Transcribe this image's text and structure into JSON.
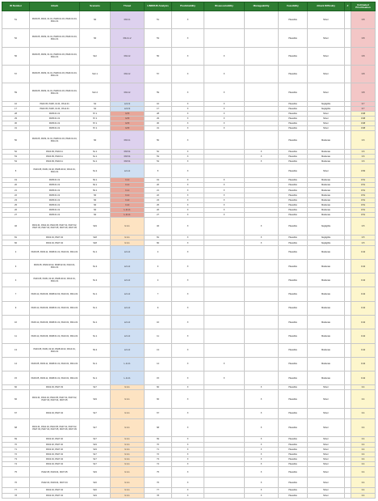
{
  "columns": [
    "ID Number",
    "Attack",
    "Scenario",
    "Threat",
    "LINDDUN Analysis",
    "Predictability",
    "Disassociability",
    "Manageability",
    "Feasibility",
    "Attack Difficulty",
    "#",
    "Estimated Prioritisation"
  ],
  "colors": {
    "header": "#2e7d32",
    "threat_D": "#ddd1ee",
    "threat_L": "#cfdff3",
    "threat_Ired": "#e8a79a",
    "threat_U": "#fde3c2",
    "prio_red": "#f3c6c6",
    "prio_yellow": "#fdf6cc",
    "prio_white": "#ffffff"
  },
  "rows": [
    {
      "id": "51",
      "attack": "PA03.05, PA04, 01.01, PA08.01.03, PA09.01.04, PA11.01",
      "scenario": "S6",
      "threat": "D3.3.1",
      "threat_color": "D",
      "linddun": "51",
      "pred": "X",
      "dis": "",
      "man": "",
      "feas": "Plausible",
      "diff": "Minor",
      "num": "",
      "prio": "0.8",
      "prio_color": "red",
      "h": "h5"
    },
    {
      "id": "52",
      "attack": "PA03.05, PA09, 01.01, PA08.01.03, PA09.01.04, PA11.01",
      "scenario": "S6",
      "threat": "D3.4.1.2",
      "threat_color": "D",
      "linddun": "53",
      "pred": "X",
      "dis": "",
      "man": "",
      "feas": "Plausible",
      "diff": "Minor",
      "num": "",
      "prio": "0.8",
      "prio_color": "red",
      "h": "h5"
    },
    {
      "id": "56",
      "attack": "PA03.05, PA09, 01.01, PA08.01.03, PA09.01.04, PA11.01",
      "scenario": "S12",
      "threat": "D3.4.2",
      "threat_color": "D",
      "linddun": "56",
      "pred": "X",
      "dis": "X",
      "man": "",
      "feas": "Plausible",
      "diff": "Minor",
      "num": "",
      "prio": "0.8",
      "prio_color": "red",
      "h": "h5"
    },
    {
      "id": "57",
      "attack": "PA03.05, PA09, 01.01, PA08.01.03, PA09.01.04, PA11.01",
      "scenario": "S12.1",
      "threat": "D3.4.2",
      "threat_color": "D",
      "linddun": "57",
      "pred": "X",
      "dis": "X",
      "man": "",
      "feas": "Plausible",
      "diff": "Minor",
      "num": "",
      "prio": "0.8",
      "prio_color": "red",
      "h": "h5"
    },
    {
      "id": "59",
      "attack": "PA03.05, PA09, 01.01, PA08.01.03, PA09.01.04, PA11.01",
      "scenario": "S12.2",
      "threat": "D3.4.2",
      "threat_color": "D",
      "linddun": "59",
      "pred": "X",
      "dis": "X",
      "man": "",
      "feas": "Plausible",
      "diff": "Minor",
      "num": "",
      "prio": "0.8",
      "prio_color": "red",
      "h": "h5"
    },
    {
      "id": "16",
      "attack": "PA03.05, PA08, 01.01, PA11.01",
      "scenario": "S4",
      "threat": "L2.2.3",
      "threat_color": "L",
      "linddun": "16",
      "pred": "X",
      "dis": "X",
      "man": "",
      "feas": "Plausible",
      "diff": "Negligible",
      "num": "",
      "prio": "0.7",
      "prio_color": "red",
      "h": "h1"
    },
    {
      "id": "17",
      "attack": "PA03.05, PA08, 01.01, PA11.01",
      "scenario": "S4",
      "threat": "L2.2.3",
      "threat_color": "L",
      "linddun": "17",
      "pred": "X",
      "dis": "X",
      "man": "",
      "feas": "Plausible",
      "diff": "Negligible",
      "num": "",
      "prio": "0.7",
      "prio_color": "red",
      "h": "h1"
    },
    {
      "id": "28",
      "attack": "PA05.01.01",
      "scenario": "S7.1",
      "threat": "I.2.5",
      "threat_color": "Ired",
      "linddun": "28",
      "pred": "X",
      "dis": "X",
      "man": "",
      "feas": "Plausible",
      "diff": "Minor",
      "num": "",
      "prio": "0.68",
      "prio_color": "yellow",
      "h": "h1"
    },
    {
      "id": "29",
      "attack": "PA05.01.01",
      "scenario": "S7.1",
      "threat": "I.2.5",
      "threat_color": "Ired",
      "linddun": "29",
      "pred": "X",
      "dis": "X",
      "man": "",
      "feas": "Plausible",
      "diff": "Minor",
      "num": "",
      "prio": "0.68",
      "prio_color": "yellow",
      "h": "h1"
    },
    {
      "id": "30",
      "attack": "PA05.01.01",
      "scenario": "S7.1",
      "threat": "I.2.5",
      "threat_color": "Ired",
      "linddun": "30",
      "pred": "X",
      "dis": "X",
      "man": "",
      "feas": "Plausible",
      "diff": "Minor",
      "num": "",
      "prio": "0.68",
      "prio_color": "yellow",
      "h": "h1"
    },
    {
      "id": "31",
      "attack": "PA05.01.01",
      "scenario": "S7.1",
      "threat": "I.2.5",
      "threat_color": "Ired",
      "linddun": "31",
      "pred": "X",
      "dis": "X",
      "man": "",
      "feas": "Plausible",
      "diff": "Minor",
      "num": "",
      "prio": "0.68",
      "prio_color": "yellow",
      "h": "h1"
    },
    {
      "id": "50",
      "attack": "PA03.05, PA09, 01.01, PA08.01.03, PA09.01.04, PA11.01",
      "scenario": "S6",
      "threat": "D3.3.1",
      "threat_color": "D",
      "linddun": "50",
      "pred": "X",
      "dis": "",
      "man": "",
      "feas": "Plausible",
      "diff": "Moderate",
      "num": "",
      "prio": "0.6",
      "prio_color": "yellow",
      "h": "h5"
    },
    {
      "id": "52",
      "attack": "PA03.09, PA03.11",
      "scenario": "S1.1",
      "threat": "D3.5.4",
      "threat_color": "D",
      "linddun": "52",
      "pred": "X",
      "dis": "",
      "man": "X",
      "feas": "Plausible",
      "diff": "Moderate",
      "num": "",
      "prio": "0.6",
      "prio_color": "yellow",
      "h": "h1"
    },
    {
      "id": "53",
      "attack": "PA03.09, PA03.11",
      "scenario": "S1.1",
      "threat": "D3.5.4",
      "threat_color": "D",
      "linddun": "53",
      "pred": "X",
      "dis": "",
      "man": "X",
      "feas": "Plausible",
      "diff": "Moderate",
      "num": "",
      "prio": "0.6",
      "prio_color": "yellow",
      "h": "h1"
    },
    {
      "id": "54",
      "attack": "PA03.09, PA03.11",
      "scenario": "S1.1",
      "threat": "D3.5.4",
      "threat_color": "D",
      "linddun": "54",
      "pred": "X",
      "dis": "",
      "man": "X",
      "feas": "Plausible",
      "diff": "Moderate",
      "num": "",
      "prio": "0.6",
      "prio_color": "yellow",
      "h": "h1"
    },
    {
      "id": "5",
      "attack": "PA03.05, PA09, 02.02, PA08.02.02, PA10.01, PA11.01",
      "scenario": "S1.2",
      "threat": "L2.1.2",
      "threat_color": "L",
      "linddun": "5",
      "pred": "X",
      "dis": "",
      "man": "",
      "feas": "Plausible",
      "diff": "Minor",
      "num": "",
      "prio": "0.56",
      "prio_color": "yellow",
      "h": "h4"
    },
    {
      "id": "19",
      "attack": "PA05.01.01",
      "scenario": "S3.1",
      "threat": "I.1.1",
      "threat_color": "Ired",
      "linddun": "19",
      "pred": "X",
      "dis": "X",
      "man": "",
      "feas": "Plausible",
      "diff": "Moderate",
      "num": "",
      "prio": "0.51",
      "prio_color": "yellow",
      "h": "h1"
    },
    {
      "id": "20",
      "attack": "PA05.01.01",
      "scenario": "S3.1",
      "threat": "I.1.1",
      "threat_color": "Ired",
      "linddun": "20",
      "pred": "X",
      "dis": "X",
      "man": "",
      "feas": "Plausible",
      "diff": "Moderate",
      "num": "",
      "prio": "0.51",
      "prio_color": "yellow",
      "h": "h1"
    },
    {
      "id": "21",
      "attack": "PA05.01.01",
      "scenario": "S3.1",
      "threat": "I.1.1",
      "threat_color": "Ired",
      "linddun": "21",
      "pred": "X",
      "dis": "X",
      "man": "",
      "feas": "Plausible",
      "diff": "Moderate",
      "num": "",
      "prio": "0.51",
      "prio_color": "yellow",
      "h": "h1"
    },
    {
      "id": "22",
      "attack": "PA05.01.01",
      "scenario": "S6",
      "threat": "I.1.1",
      "threat_color": "Ired",
      "linddun": "22",
      "pred": "X",
      "dis": "X",
      "man": "",
      "feas": "Plausible",
      "diff": "Moderate",
      "num": "",
      "prio": "0.51",
      "prio_color": "yellow",
      "h": "h1"
    },
    {
      "id": "23",
      "attack": "PA05.01.01",
      "scenario": "S6",
      "threat": "I.1.2",
      "threat_color": "Ired",
      "linddun": "23",
      "pred": "X",
      "dis": "X",
      "man": "",
      "feas": "Plausible",
      "diff": "Moderate",
      "num": "",
      "prio": "0.51",
      "prio_color": "yellow",
      "h": "h1"
    },
    {
      "id": "25",
      "attack": "PA05.01.01",
      "scenario": "S6",
      "threat": "I.1.2",
      "threat_color": "Ired",
      "linddun": "25",
      "pred": "X",
      "dis": "X",
      "man": "",
      "feas": "Plausible",
      "diff": "Moderate",
      "num": "",
      "prio": "0.51",
      "prio_color": "yellow",
      "h": "h1"
    },
    {
      "id": "26",
      "attack": "PA05.01.01",
      "scenario": "S6",
      "threat": "L.2.1.1",
      "threat_color": "Ired",
      "linddun": "26",
      "pred": "X",
      "dis": "X",
      "man": "",
      "feas": "Plausible",
      "diff": "Moderate",
      "num": "",
      "prio": "0.51",
      "prio_color": "yellow",
      "h": "h1"
    },
    {
      "id": "27",
      "attack": "PA05.01.01",
      "scenario": "S6",
      "threat": "L.2.1.1",
      "threat_color": "Ired",
      "linddun": "27",
      "pred": "X",
      "dis": "X",
      "man": "",
      "feas": "Plausible",
      "diff": "Moderate",
      "num": "",
      "prio": "0.51",
      "prio_color": "yellow",
      "h": "h1"
    },
    {
      "id": "46",
      "attack": "PA01.01, PA01.04, PA03.05, PA07.01, PA07.02, PA07.03, PA07.04, PA07.05, PA07.06, PA07.09",
      "scenario": "S19",
      "threat": "U.1.1",
      "threat_color": "U",
      "linddun": "46",
      "pred": "X",
      "dis": "",
      "man": "X",
      "feas": "Plausible",
      "diff": "Negligible",
      "num": "",
      "prio": "0.5",
      "prio_color": "yellow",
      "h": "h5"
    },
    {
      "id": "81",
      "attack": "PA02.04, PA07.04",
      "scenario": "S18",
      "threat": "U.1.1",
      "threat_color": "U",
      "linddun": "81",
      "pred": "X",
      "dis": "",
      "man": "X",
      "feas": "Plausible",
      "diff": "Negligible",
      "num": "",
      "prio": "0.5",
      "prio_color": "yellow",
      "h": "h1"
    },
    {
      "id": "82",
      "attack": "PA02.04, PA07.04",
      "scenario": "S18",
      "threat": "U.1.1",
      "threat_color": "U",
      "linddun": "82",
      "pred": "X",
      "dis": "",
      "man": "X",
      "feas": "Plausible",
      "diff": "Negligible",
      "num": "",
      "prio": "0.5",
      "prio_color": "yellow",
      "h": "h1"
    },
    {
      "id": "2",
      "attack": "PA03.05, PA03.11, PA08.01.01, PA10.01, PA11.01",
      "scenario": "S1.1",
      "threat": "L2.1.2",
      "threat_color": "L",
      "linddun": "2",
      "pred": "X",
      "dis": "",
      "man": "",
      "feas": "Plausible",
      "diff": "Moderate",
      "num": "",
      "prio": "0.42",
      "prio_color": "yellow",
      "h": "h4"
    },
    {
      "id": "3",
      "attack": "PA03.05, PA09.02.02, PA08.02.02, PA10.01, PA11.01",
      "scenario": "S1.2",
      "threat": "L2.1.2",
      "threat_color": "L",
      "linddun": "3",
      "pred": "X",
      "dis": "",
      "man": "",
      "feas": "Plausible",
      "diff": "Moderate",
      "num": "",
      "prio": "0.42",
      "prio_color": "yellow",
      "h": "h4"
    },
    {
      "id": "4",
      "attack": "PA03.05, PA09, 02.02, PA08.02.02, PA10.01, PA11.01",
      "scenario": "S1.2",
      "threat": "L2.1.2",
      "threat_color": "L",
      "linddun": "4",
      "pred": "X",
      "dis": "",
      "man": "",
      "feas": "Plausible",
      "diff": "Moderate",
      "num": "",
      "prio": "0.42",
      "prio_color": "yellow",
      "h": "h4"
    },
    {
      "id": "7",
      "attack": "PA03.11, PA03.09, PA08.02.02, PA10.01, PA11.01",
      "scenario": "S1.1",
      "threat": "L2.1.2",
      "threat_color": "L",
      "linddun": "7",
      "pred": "X",
      "dis": "",
      "man": "",
      "feas": "Plausible",
      "diff": "Moderate",
      "num": "",
      "prio": "0.42",
      "prio_color": "yellow",
      "h": "h4"
    },
    {
      "id": "9",
      "attack": "PA03.11, PA03.09, PA08.01.01, PA10.01, PA11.01",
      "scenario": "S1.1",
      "threat": "L2.1.2",
      "threat_color": "L",
      "linddun": "9",
      "pred": "X",
      "dis": "",
      "man": "",
      "feas": "Plausible",
      "diff": "Moderate",
      "num": "",
      "prio": "0.42",
      "prio_color": "yellow",
      "h": "h4"
    },
    {
      "id": "10",
      "attack": "PA03.11, PA03.09, PA08.01.01, PA10.01, PA11.01",
      "scenario": "S1.1",
      "threat": "L2.1.2",
      "threat_color": "L",
      "linddun": "10",
      "pred": "X",
      "dis": "",
      "man": "",
      "feas": "Plausible",
      "diff": "Moderate",
      "num": "",
      "prio": "0.42",
      "prio_color": "yellow",
      "h": "h4"
    },
    {
      "id": "11",
      "attack": "PA03.11, PA03.09, PA08.01.01, PA10.01, PA11.01",
      "scenario": "S1.1",
      "threat": "L2.1.2",
      "threat_color": "L",
      "linddun": "11",
      "pred": "X",
      "dis": "",
      "man": "",
      "feas": "Plausible",
      "diff": "Moderate",
      "num": "",
      "prio": "0.42",
      "prio_color": "yellow",
      "h": "h4"
    },
    {
      "id": "13",
      "attack": "PA03.05, PA09, 02.02, PA08.02.02, PA10.01, PA11.01",
      "scenario": "S3.2",
      "threat": "L2.1.2",
      "threat_color": "L",
      "linddun": "13",
      "pred": "X",
      "dis": "",
      "man": "",
      "feas": "Plausible",
      "diff": "Moderate",
      "num": "",
      "prio": "0.42",
      "prio_color": "yellow",
      "h": "h4"
    },
    {
      "id": "14",
      "attack": "PA03.05, PA03.11, PA08.01.01, PA10.01, PA11.01",
      "scenario": "S1.1",
      "threat": "L.2.2.1",
      "threat_color": "L",
      "linddun": "14",
      "pred": "X",
      "dis": "X",
      "man": "",
      "feas": "Plausible",
      "diff": "Moderate",
      "num": "",
      "prio": "0.42",
      "prio_color": "yellow",
      "h": "h4"
    },
    {
      "id": "15",
      "attack": "PA03.05, PA03.11, PA08.01.01, PA10.01, PA11.01",
      "scenario": "S1.1",
      "threat": "L.2.2.1",
      "threat_color": "L",
      "linddun": "15",
      "pred": "X",
      "dis": "X",
      "man": "",
      "feas": "Plausible",
      "diff": "Moderate",
      "num": "",
      "prio": "0.42",
      "prio_color": "yellow",
      "h": "h4"
    },
    {
      "id": "60",
      "attack": "PA02.03, PA07.03",
      "scenario": "S17",
      "threat": "U.1.1",
      "threat_color": "U",
      "linddun": "60",
      "pred": "X",
      "dis": "",
      "man": "X",
      "feas": "Plausible",
      "diff": "Minor",
      "num": "",
      "prio": "0.4",
      "prio_color": "yellow",
      "h": "h1"
    },
    {
      "id": "66",
      "attack": "PA01.01, PA01.04, PA03.05, PA07.01, PA07.02, PA07.03, PA07.04, PA07.05",
      "scenario": "S19",
      "threat": "U.1.1",
      "threat_color": "U",
      "linddun": "66",
      "pred": "X",
      "dis": "",
      "man": "X",
      "feas": "Plausible",
      "diff": "Minor",
      "num": "",
      "prio": "0.4",
      "prio_color": "yellow",
      "h": "h5"
    },
    {
      "id": "67",
      "attack": "PA02.04, PA07.04",
      "scenario": "S17",
      "threat": "U.1.1",
      "threat_color": "U",
      "linddun": "67",
      "pred": "X",
      "dis": "",
      "man": "X",
      "feas": "Plausible",
      "diff": "Minor",
      "num": "",
      "prio": "0.4",
      "prio_color": "yellow",
      "h": "h3"
    },
    {
      "id": "68",
      "attack": "PA01.01, PA01.04, PA03.05, PA07.01, PA07.02, PA07.03, PA07.04, PA07.05, PA07.06, PA07.09",
      "scenario": "S17",
      "threat": "U.1.1",
      "threat_color": "U",
      "linddun": "68",
      "pred": "X",
      "dis": "",
      "man": "X",
      "feas": "Plausible",
      "diff": "Minor",
      "num": "",
      "prio": "0.4",
      "prio_color": "yellow",
      "h": "h5"
    },
    {
      "id": "69",
      "attack": "PA02.02, PA07.02",
      "scenario": "S17",
      "threat": "U.1.1",
      "threat_color": "U",
      "linddun": "69",
      "pred": "X",
      "dis": "",
      "man": "X",
      "feas": "Plausible",
      "diff": "Minor",
      "num": "",
      "prio": "0.4",
      "prio_color": "yellow",
      "h": "h1"
    },
    {
      "id": "70",
      "attack": "PA02.02, PA07.02",
      "scenario": "S19",
      "threat": "U.1.1",
      "threat_color": "U",
      "linddun": "70",
      "pred": "X",
      "dis": "",
      "man": "X",
      "feas": "Plausible",
      "diff": "Minor",
      "num": "",
      "prio": "0.4",
      "prio_color": "yellow",
      "h": "h1"
    },
    {
      "id": "71",
      "attack": "PA02.02, PA07.02",
      "scenario": "S19",
      "threat": "U.1.1",
      "threat_color": "U",
      "linddun": "71",
      "pred": "X",
      "dis": "",
      "man": "X",
      "feas": "Plausible",
      "diff": "Minor",
      "num": "",
      "prio": "0.4",
      "prio_color": "yellow",
      "h": "h1"
    },
    {
      "id": "72",
      "attack": "PA02.04, PA07.04",
      "scenario": "S17",
      "threat": "U.1.1",
      "threat_color": "U",
      "linddun": "72",
      "pred": "X",
      "dis": "",
      "man": "X",
      "feas": "Plausible",
      "diff": "Minor",
      "num": "",
      "prio": "0.4",
      "prio_color": "yellow",
      "h": "h1"
    },
    {
      "id": "73",
      "attack": "PA02.04, PA07.04",
      "scenario": "S17",
      "threat": "U.1.1",
      "threat_color": "U",
      "linddun": "73",
      "pred": "X",
      "dis": "",
      "man": "X",
      "feas": "Plausible",
      "diff": "Minor",
      "num": "",
      "prio": "0.4",
      "prio_color": "yellow",
      "h": "h1"
    },
    {
      "id": "74",
      "attack": "PA02.04, PA07.04",
      "scenario": "S17",
      "threat": "U.1.1",
      "threat_color": "U",
      "linddun": "74",
      "pred": "X",
      "dis": "",
      "man": "X",
      "feas": "Plausible",
      "diff": "Minor",
      "num": "",
      "prio": "0.4",
      "prio_color": "yellow",
      "h": "h1"
    },
    {
      "id": "75",
      "attack": "PA02.05, PA03.04, PA07.05",
      "scenario": "S19",
      "threat": "U.1.1",
      "threat_color": "U",
      "linddun": "75",
      "pred": "X",
      "dis": "",
      "man": "X",
      "feas": "Plausible",
      "diff": "Minor",
      "num": "",
      "prio": "0.4",
      "prio_color": "yellow",
      "h": "h3"
    },
    {
      "id": "76",
      "attack": "PA02.04, PA03.04, PA07.04",
      "scenario": "S16",
      "threat": "U.1.1",
      "threat_color": "U",
      "linddun": "76",
      "pred": "X",
      "dis": "",
      "man": "X",
      "feas": "Plausible",
      "diff": "Minor",
      "num": "",
      "prio": "0.4",
      "prio_color": "yellow",
      "h": "h3"
    },
    {
      "id": "77",
      "attack": "PA02.04, PA07.04",
      "scenario": "S16",
      "threat": "U.1.1",
      "threat_color": "U",
      "linddun": "77",
      "pred": "X",
      "dis": "",
      "man": "X",
      "feas": "Plausible",
      "diff": "Minor",
      "num": "",
      "prio": "0.4",
      "prio_color": "yellow",
      "h": "h1"
    },
    {
      "id": "78",
      "attack": "PA02.04, PA07.04",
      "scenario": "S19",
      "threat": "U.1.1",
      "threat_color": "U",
      "linddun": "78",
      "pred": "X",
      "dis": "",
      "man": "X",
      "feas": "Plausible",
      "diff": "Minor",
      "num": "",
      "prio": "0.4",
      "prio_color": "yellow",
      "h": "h1"
    }
  ]
}
